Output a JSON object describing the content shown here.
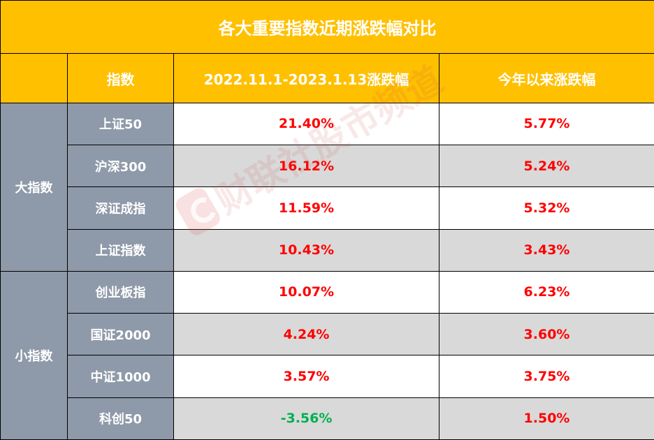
{
  "title": "各大重要指数近期涨跌幅对比",
  "headers": {
    "group": "",
    "index": "指数",
    "period": "2022.11.1-2023.1.13涨跌幅",
    "ytd": "今年以来涨跌幅"
  },
  "groups": [
    {
      "label": "大指数",
      "rows": [
        {
          "name": "上证50",
          "period": "21.40%",
          "ytd": "5.77%"
        },
        {
          "name": "沪深300",
          "period": "16.12%",
          "ytd": "5.24%"
        },
        {
          "name": "深证成指",
          "period": "11.59%",
          "ytd": "5.32%"
        },
        {
          "name": "上证指数",
          "period": "10.43%",
          "ytd": "3.43%"
        }
      ]
    },
    {
      "label": "小指数",
      "rows": [
        {
          "name": "创业板指",
          "period": "10.07%",
          "ytd": "6.23%"
        },
        {
          "name": "国证2000",
          "period": "4.24%",
          "ytd": "3.60%"
        },
        {
          "name": "中证1000",
          "period": "3.57%",
          "ytd": "3.75%"
        },
        {
          "name": "科创50",
          "period": "-3.56%",
          "ytd": "1.50%"
        }
      ]
    }
  ],
  "watermark": "财联社股市频道",
  "watermark_icon": "cls-logo-icon",
  "colors": {
    "header_bg": "#ffc000",
    "side_bg": "#8e99a9",
    "positive": "#ff0000",
    "negative": "#00b050",
    "stripe": "#d9d9d9"
  }
}
